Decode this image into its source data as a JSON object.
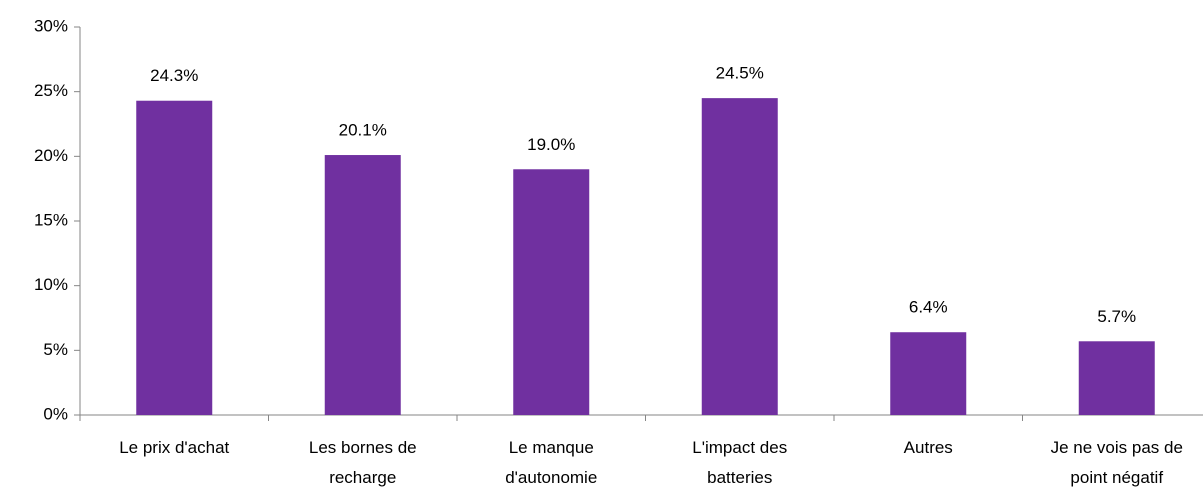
{
  "chart_data": {
    "type": "bar",
    "categories": [
      [
        "Le prix d'achat"
      ],
      [
        "Les bornes de",
        "recharge"
      ],
      [
        "Le manque",
        "d'autonomie"
      ],
      [
        "L'impact des",
        "batteries"
      ],
      [
        "Autres"
      ],
      [
        "Je ne vois pas de",
        "point négatif"
      ]
    ],
    "values": [
      24.3,
      20.1,
      19.0,
      24.5,
      6.4,
      5.7
    ],
    "value_labels": [
      "24.3%",
      "20.1%",
      "19.0%",
      "24.5%",
      "6.4%",
      "5.7%"
    ],
    "color": "#7030a0",
    "ylim": [
      0,
      30
    ],
    "yticks": [
      {
        "value": 0,
        "label": "0%"
      },
      {
        "value": 5,
        "label": "5%"
      },
      {
        "value": 10,
        "label": "10%"
      },
      {
        "value": 15,
        "label": "15%"
      },
      {
        "value": 20,
        "label": "20%"
      },
      {
        "value": 25,
        "label": "25%"
      },
      {
        "value": 30,
        "label": "30%"
      }
    ],
    "grid": false
  }
}
